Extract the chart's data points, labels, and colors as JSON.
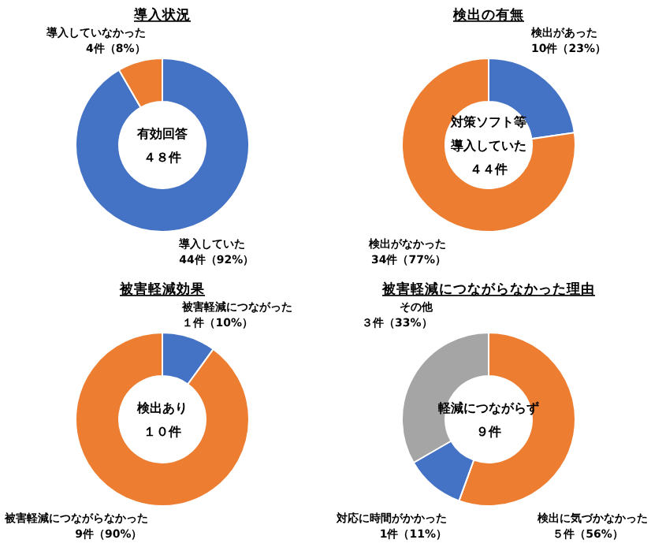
{
  "chart_data": [
    {
      "type": "donut",
      "title": "導入状況",
      "categories": [
        "導入していた",
        "導入していなかった"
      ],
      "values": [
        44,
        4
      ],
      "colors": [
        "#4472c4",
        "#ed7d31"
      ],
      "value_labels": [
        "44件（92%）",
        "4件（8%）"
      ],
      "annotations": [
        "有効回答",
        "４８件"
      ]
    },
    {
      "type": "donut",
      "title": "検出の有無",
      "categories": [
        "検出があった",
        "検出がなかった"
      ],
      "values": [
        10,
        34
      ],
      "colors": [
        "#4472c4",
        "#ed7d31"
      ],
      "value_labels": [
        "10件（23%）",
        "34件（77%）"
      ],
      "annotations": [
        "対策ソフト等",
        "導入していた",
        "４４件"
      ]
    },
    {
      "type": "donut",
      "title": "被害軽減効果",
      "categories": [
        "被害軽減につながった",
        "被害軽減につながらなかった"
      ],
      "values": [
        1,
        9
      ],
      "colors": [
        "#4472c4",
        "#ed7d31"
      ],
      "value_labels": [
        "１件（10%）",
        "9件（90%）"
      ],
      "annotations": [
        "検出あり",
        "１０件"
      ]
    },
    {
      "type": "donut",
      "title": "被害軽減につながらなかった理由",
      "categories": [
        "検出に気づかなかった",
        "対応に時間がかかった",
        "その他"
      ],
      "values": [
        5,
        1,
        3
      ],
      "colors": [
        "#ed7d31",
        "#4472c4",
        "#a5a5a5"
      ],
      "value_labels": [
        "５件（56%）",
        "1件（11%）",
        "３件（33%）"
      ],
      "annotations": [
        "軽減につながらず",
        "９件"
      ]
    }
  ]
}
